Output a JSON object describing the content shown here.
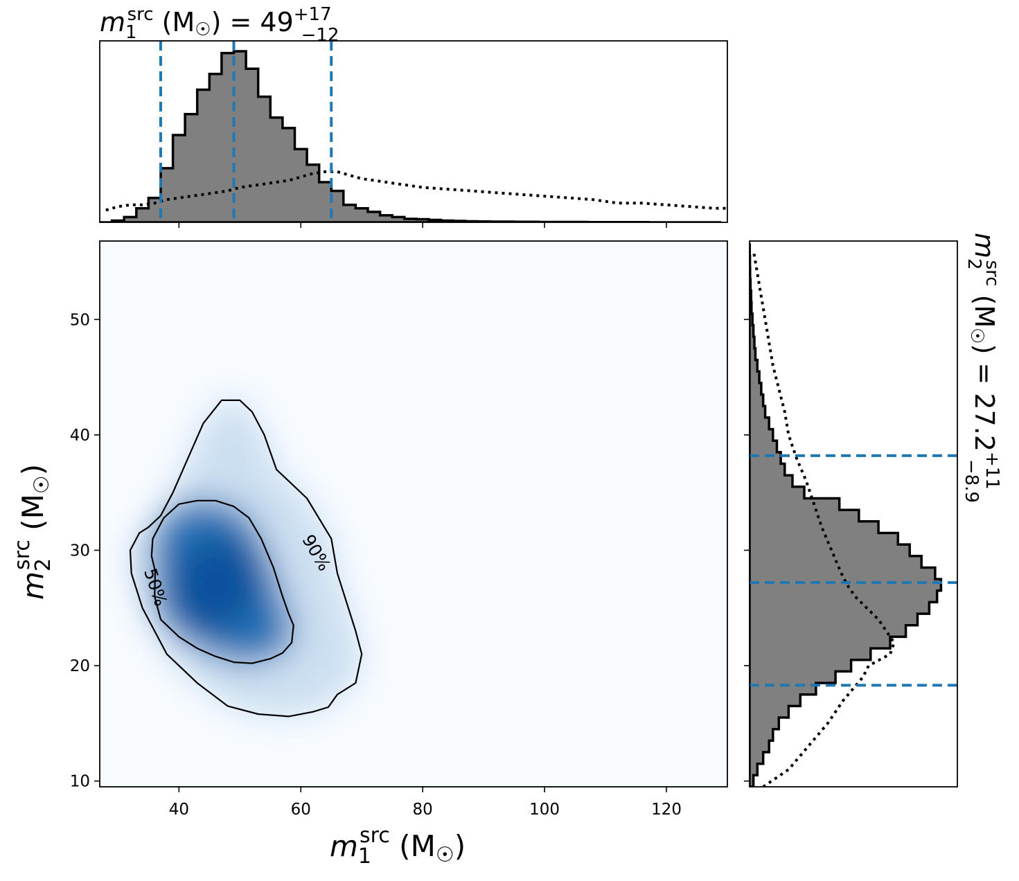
{
  "chart_data": [
    {
      "type": "heatmap",
      "panel": "joint",
      "x": [
        30,
        35,
        40,
        45,
        50,
        55,
        60,
        65,
        70
      ],
      "y": [
        15,
        20,
        25,
        30,
        35,
        40
      ],
      "xlabel": "m1 src (M☉)",
      "ylabel": "m2 src (M☉)",
      "xlim": [
        27,
        130
      ],
      "ylim": [
        9.5,
        56.8
      ],
      "xticks": [
        40,
        60,
        80,
        100,
        120
      ],
      "yticks": [
        10,
        20,
        30,
        40,
        50
      ],
      "xtick_labels": [
        "40",
        "60",
        "80",
        "100",
        "120"
      ],
      "ytick_labels": [
        "10",
        "20",
        "30",
        "40",
        "50"
      ],
      "density_peak": {
        "x": 46,
        "y": 27
      },
      "colormap": "Blues",
      "contours": [
        {
          "label": "50%",
          "points": [
            [
              36,
              26
            ],
            [
              37,
              24
            ],
            [
              40,
              22.5
            ],
            [
              43,
              21.5
            ],
            [
              46,
              20.8
            ],
            [
              49,
              20.3
            ],
            [
              52,
              20.2
            ],
            [
              55,
              20.6
            ],
            [
              57,
              21.1
            ],
            [
              58.5,
              22
            ],
            [
              58.8,
              23.5
            ],
            [
              58,
              24.5
            ],
            [
              57,
              26
            ],
            [
              55.5,
              28.5
            ],
            [
              53.5,
              31
            ],
            [
              51.5,
              32.8
            ],
            [
              49,
              33.8
            ],
            [
              46,
              34.3
            ],
            [
              43,
              34.3
            ],
            [
              40,
              34
            ],
            [
              37.5,
              32.8
            ],
            [
              35.7,
              31
            ],
            [
              35.5,
              29.5
            ],
            [
              36.1,
              28.2
            ]
          ]
        },
        {
          "label": "90%",
          "points": [
            [
              34,
              25
            ],
            [
              38,
              21
            ],
            [
              43,
              18.5
            ],
            [
              48,
              16.5
            ],
            [
              53,
              15.8
            ],
            [
              58,
              15.6
            ],
            [
              62,
              16
            ],
            [
              64.5,
              16.4
            ],
            [
              66,
              17.5
            ],
            [
              69,
              18.5
            ],
            [
              70,
              21
            ],
            [
              69,
              23
            ],
            [
              66,
              28
            ],
            [
              65,
              31
            ],
            [
              61,
              34.5
            ],
            [
              59,
              35.5
            ],
            [
              56,
              37
            ],
            [
              54,
              40
            ],
            [
              52,
              42
            ],
            [
              50,
              43
            ],
            [
              47,
              43
            ],
            [
              44,
              41
            ],
            [
              41.5,
              38
            ],
            [
              39,
              35
            ],
            [
              37,
              33
            ],
            [
              35,
              32
            ],
            [
              33.5,
              31.5
            ],
            [
              32,
              30
            ],
            [
              32.2,
              28
            ]
          ]
        }
      ]
    },
    {
      "type": "area",
      "panel": "top-marginal",
      "title": "m1 src (M☉) = 49 +17 −12",
      "median": "49",
      "upper_err": "+17",
      "lower_err": "−12",
      "xlim": [
        27,
        130
      ],
      "quantile_lines": [
        37,
        49,
        65
      ],
      "posterior": {
        "bin_edges": [
          27,
          29,
          31,
          33,
          35,
          37,
          39,
          41,
          43,
          45,
          47,
          49,
          51,
          53,
          55,
          57,
          59,
          61,
          63,
          65,
          67,
          69,
          71,
          73,
          75,
          77,
          79,
          81,
          83,
          85,
          87,
          89,
          91,
          93,
          95,
          97,
          99,
          101,
          103,
          105,
          107,
          109,
          111,
          113,
          115,
          117,
          119,
          121,
          123,
          125,
          127,
          129
        ],
        "heights": [
          0,
          0.01,
          0.03,
          0.08,
          0.14,
          0.31,
          0.5,
          0.62,
          0.76,
          0.85,
          0.97,
          0.98,
          0.88,
          0.72,
          0.6,
          0.54,
          0.42,
          0.33,
          0.23,
          0.18,
          0.1,
          0.08,
          0.06,
          0.04,
          0.03,
          0.02,
          0.018,
          0.014,
          0.01,
          0.008,
          0.006,
          0.005,
          0.004,
          0.004,
          0.003,
          0.003,
          0.002,
          0.002,
          0.002,
          0.002,
          0.001,
          0.001,
          0.001,
          0.001,
          0.001,
          0,
          0,
          0,
          0,
          0,
          0
        ]
      },
      "prior": {
        "x": [
          28,
          30,
          32,
          34,
          36,
          38,
          40,
          42,
          44,
          46,
          48,
          50,
          52,
          54,
          56,
          58,
          60,
          62,
          64,
          66,
          68,
          70,
          72,
          74,
          76,
          78,
          80,
          84,
          88,
          92,
          96,
          100,
          104,
          108,
          112,
          116,
          120,
          124,
          128,
          130
        ],
        "y": [
          0.07,
          0.09,
          0.1,
          0.1,
          0.11,
          0.13,
          0.14,
          0.15,
          0.16,
          0.17,
          0.18,
          0.2,
          0.21,
          0.22,
          0.23,
          0.24,
          0.26,
          0.28,
          0.29,
          0.29,
          0.27,
          0.25,
          0.24,
          0.23,
          0.22,
          0.21,
          0.2,
          0.19,
          0.18,
          0.17,
          0.16,
          0.15,
          0.14,
          0.13,
          0.11,
          0.11,
          0.1,
          0.09,
          0.08,
          0.08
        ]
      }
    },
    {
      "type": "area",
      "panel": "right-marginal",
      "title": "m2 src (M☉) = 27.2 +11 −8.9",
      "median": "27.2",
      "upper_err": "+11",
      "lower_err": "−8.9",
      "ylim": [
        9.5,
        56.8
      ],
      "quantile_lines": [
        18.3,
        27.2,
        38.2
      ],
      "posterior": {
        "bin_edges": [
          9.5,
          10.5,
          11.5,
          12.5,
          13.5,
          14.5,
          15.5,
          16.5,
          17.5,
          18.5,
          19.5,
          20.5,
          21.5,
          22.5,
          23.5,
          24.5,
          25.5,
          26.5,
          27.5,
          28.5,
          29.5,
          30.5,
          31.5,
          32.5,
          33.5,
          34.5,
          35.5,
          36.5,
          37.5,
          38.5,
          39.5,
          40.5,
          41.5,
          42.5,
          43.5,
          44.5,
          45.5,
          46.5,
          47.5,
          48.5,
          49.5,
          50.5,
          51.5,
          52.5,
          53.5,
          54.5,
          55.5,
          56.5
        ],
        "heights": [
          0.02,
          0.04,
          0.07,
          0.1,
          0.12,
          0.15,
          0.2,
          0.26,
          0.34,
          0.44,
          0.52,
          0.62,
          0.72,
          0.8,
          0.86,
          0.92,
          0.96,
          0.98,
          0.95,
          0.88,
          0.82,
          0.76,
          0.66,
          0.56,
          0.46,
          0.28,
          0.22,
          0.18,
          0.16,
          0.14,
          0.12,
          0.1,
          0.08,
          0.07,
          0.06,
          0.05,
          0.04,
          0.03,
          0.025,
          0.02,
          0.015,
          0.01,
          0.008,
          0.005,
          0.003,
          0.002,
          0.001
        ]
      },
      "prior": {
        "y": [
          9.5,
          11,
          13,
          15,
          17,
          19,
          20,
          21,
          22,
          23,
          24,
          25,
          26,
          27,
          28,
          30,
          32,
          34,
          36,
          38,
          40,
          42,
          44,
          46,
          48,
          50,
          52,
          54,
          56
        ],
        "x": [
          0.07,
          0.2,
          0.3,
          0.4,
          0.48,
          0.58,
          0.61,
          0.72,
          0.74,
          0.7,
          0.66,
          0.6,
          0.54,
          0.5,
          0.47,
          0.42,
          0.37,
          0.33,
          0.29,
          0.24,
          0.2,
          0.18,
          0.15,
          0.12,
          0.1,
          0.08,
          0.06,
          0.04,
          0.02
        ]
      }
    }
  ],
  "colors": {
    "posterior_fill": "#808080",
    "quantile_line": "#1f77b4",
    "contour": "#000000"
  }
}
